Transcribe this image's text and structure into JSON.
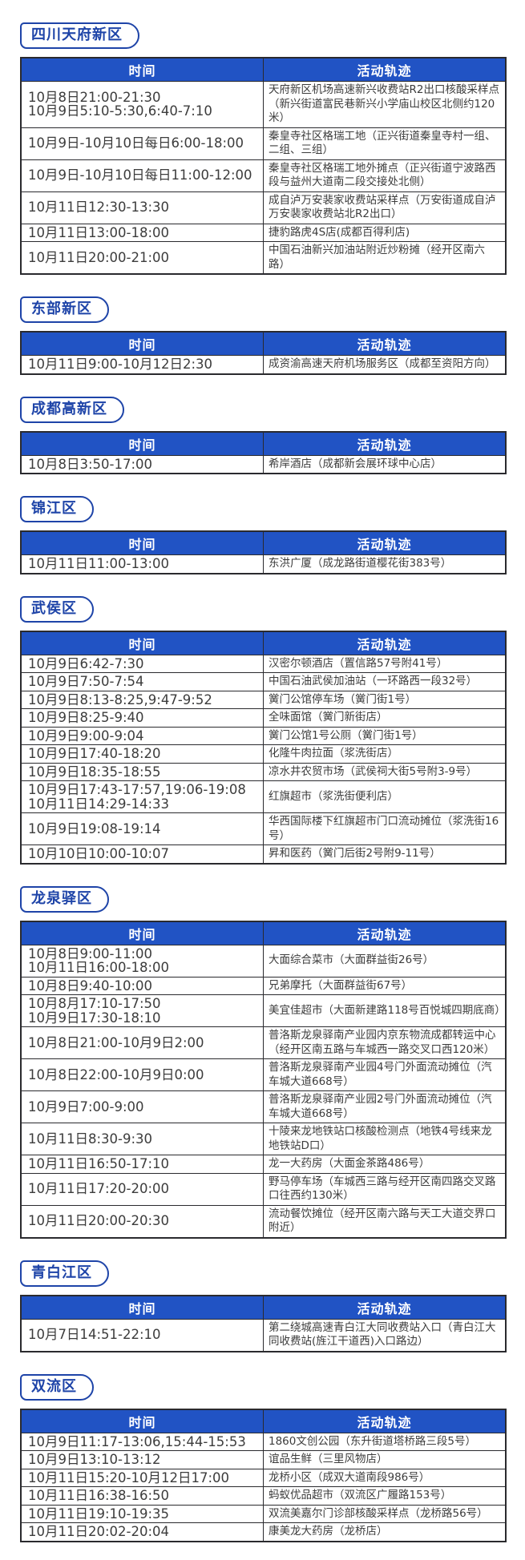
{
  "colors": {
    "header_bg": "#2153c4",
    "header_text": "#ffffff",
    "badge_blue": "#1e44a8",
    "table_border": "#2a2a2e",
    "body_text": "#3c3c3c",
    "page_bg": "#ffffff"
  },
  "table_headers": {
    "time": "时间",
    "track": "活动轨迹"
  },
  "sections": [
    {
      "district": "四川天府新区",
      "rows": [
        {
          "time": "10月8日21:00-21:30\n10月9日5:10-5:30,6:40-7:10",
          "track": "天府新区机场高速新兴收费站R2出口核酸采样点（新兴街道富民巷新兴小学庙山校区北侧约120米）"
        },
        {
          "time": "10月9日-10月10日每日6:00-18:00",
          "track": "秦皇寺社区格瑞工地（正兴街道秦皇寺村一组、二组、三组）"
        },
        {
          "time": "10月9日-10月10日每日11:00-12:00",
          "track": "秦皇寺社区格瑞工地外摊点（正兴街道宁波路西段与益州大道南二段交接处北侧）"
        },
        {
          "time": "10月11日12:30-13:30",
          "track": "成自泸万安裴家收费站采样点（万安街道成自泸万安裴家收费站北R2出口）"
        },
        {
          "time": "10月11日13:00-18:00",
          "track": "捷豹路虎4S店(成都百得利店)"
        },
        {
          "time": "10月11日20:00-21:00",
          "track": "中国石油新兴加油站附近炒粉摊（经开区南六路）"
        }
      ]
    },
    {
      "district": "东部新区",
      "rows": [
        {
          "time": "10月11日9:00-10月12日2:30",
          "track": "成资渝高速天府机场服务区（成都至资阳方向）"
        }
      ]
    },
    {
      "district": "成都高新区",
      "rows": [
        {
          "time": "10月8日3:50-17:00",
          "track": "希岸酒店（成都新会展环球中心店）"
        }
      ]
    },
    {
      "district": "锦江区",
      "rows": [
        {
          "time": "10月11日11:00-13:00",
          "track": "东洪广厦（成龙路街道樱花街383号）"
        }
      ]
    },
    {
      "district": "武侯区",
      "rows": [
        {
          "time": "10月9日6:42-7:30",
          "track": "汉密尔顿酒店（置信路57号附41号）"
        },
        {
          "time": "10月9日7:50-7:54",
          "track": "中国石油武侯加油站（一环路西一段32号）"
        },
        {
          "time": "10月9日8:13-8:25,9:47-9:52",
          "track": "黉门公馆停车场（黉门街1号）"
        },
        {
          "time": "10月9日8:25-9:40",
          "track": "全味面馆（黉门新街店）"
        },
        {
          "time": "10月9日9:00-9:04",
          "track": "黉门公馆1号公厕（黉门街1号）"
        },
        {
          "time": "10月9日17:40-18:20",
          "track": "化隆牛肉拉面（浆洗街店）"
        },
        {
          "time": "10月9日18:35-18:55",
          "track": "凉水井农贸市场（武侯祠大街5号附3-9号）"
        },
        {
          "time": "10月9日17:43-17:57,19:06-19:08\n10月11日14:29-14:33",
          "track": "红旗超市（浆洗街便利店）"
        },
        {
          "time": "10月9日19:08-19:14",
          "track": "华西国际楼下红旗超市门口流动摊位（浆洗街16号）"
        },
        {
          "time": "10月10日10:00-10:07",
          "track": "昇和医药（黉门后街2号附9-11号）"
        }
      ]
    },
    {
      "district": "龙泉驿区",
      "rows": [
        {
          "time": "10月8日9:00-11:00\n10月11日16:00-18:00",
          "track": "大面综合菜市（大面群益街26号）"
        },
        {
          "time": "10月8日9:40-10:00",
          "track": "兄弟摩托（大面群益街67号）"
        },
        {
          "time": "10月8月17:10-17:50\n10月9日17:30-18:10",
          "track": "美宜佳超市（大面新建路118号百悦城四期底商）"
        },
        {
          "time": "10月8日21:00-10月9日2:00",
          "track": "普洛斯龙泉驿南产业园内京东物流成都转运中心（经开区南五路与车城西一路交叉口西120米）"
        },
        {
          "time": "10月8日22:00-10月9日0:00",
          "track": "普洛斯龙泉驿南产业园4号门外面流动摊位（汽车城大道668号）"
        },
        {
          "time": "10月9日7:00-9:00",
          "track": "普洛斯龙泉驿南产业园2号门外面流动摊位（汽车城大道668号）"
        },
        {
          "time": "10月11日8:30-9:30",
          "track": "十陵来龙地铁站口核酸检测点（地铁4号线来龙地铁站D口）"
        },
        {
          "time": "10月11日16:50-17:10",
          "track": "龙一大药房（大面金茶路486号）"
        },
        {
          "time": "10月11日17:20-20:00",
          "track": "野马停车场（车城西三路与经开区南四路交叉路口往西约130米）"
        },
        {
          "time": "10月11日20:00-20:30",
          "track": "流动餐饮摊位（经开区南六路与天工大道交界口附近）"
        }
      ]
    },
    {
      "district": "青白江区",
      "rows": [
        {
          "time": "10月7日14:51-22:10",
          "track": "第二绕城高速青白江大同收费站入口（青白江大同收费站(旌江干道西)入口路边）"
        }
      ]
    },
    {
      "district": "双流区",
      "rows": [
        {
          "time": "10月9日11:17-13:06,15:44-15:53",
          "track": "1860文创公园（东升街道塔桥路三段5号）"
        },
        {
          "time": "10月9日13:10-13:12",
          "track": "谊品生鲜（三里风物店）"
        },
        {
          "time": "10月11日15:20-10月12日17:00",
          "track": "龙桥小区（成双大道南段986号）"
        },
        {
          "time": "10月11日16:38-16:50",
          "track": "蚂蚁优品超市（双流区广履路153号）"
        },
        {
          "time": "10月11日19:10-19:35",
          "track": "双流美嘉尔门诊部核酸采样点（龙桥路56号）"
        },
        {
          "time": "10月11日20:02-20:04",
          "track": "康美龙大药房（龙桥店）"
        }
      ]
    }
  ]
}
